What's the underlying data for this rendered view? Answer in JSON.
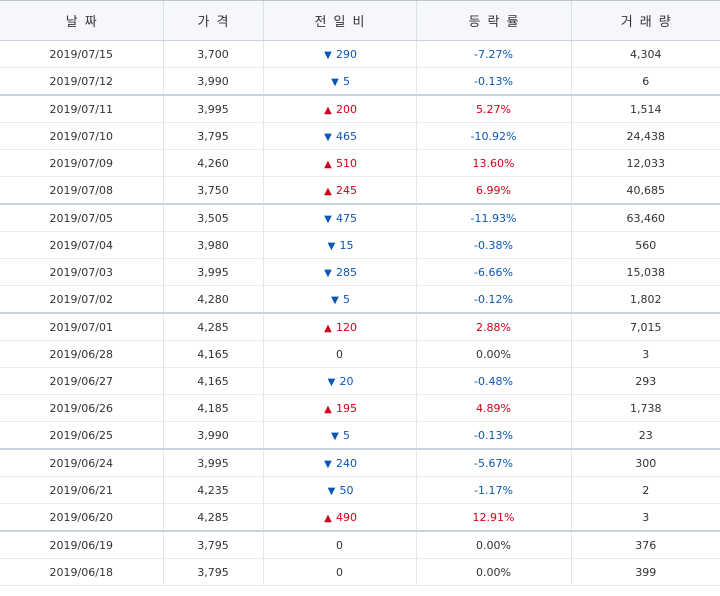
{
  "headers": [
    "날짜",
    "가격",
    "전일비",
    "등락률",
    "거래량"
  ],
  "colors": {
    "up": "#d0021b",
    "down": "#0a56b8",
    "flat": "#333333"
  },
  "rows": [
    {
      "date": "2019/07/15",
      "price": "3,700",
      "dir": "down",
      "change": "290",
      "rate": "-7.27%",
      "volume": "4,304"
    },
    {
      "date": "2019/07/12",
      "price": "3,990",
      "dir": "down",
      "change": "5",
      "rate": "-0.13%",
      "volume": "6"
    },
    {
      "date": "2019/07/11",
      "price": "3,995",
      "dir": "up",
      "change": "200",
      "rate": "5.27%",
      "volume": "1,514"
    },
    {
      "date": "2019/07/10",
      "price": "3,795",
      "dir": "down",
      "change": "465",
      "rate": "-10.92%",
      "volume": "24,438"
    },
    {
      "date": "2019/07/09",
      "price": "4,260",
      "dir": "up",
      "change": "510",
      "rate": "13.60%",
      "volume": "12,033"
    },
    {
      "date": "2019/07/08",
      "price": "3,750",
      "dir": "up",
      "change": "245",
      "rate": "6.99%",
      "volume": "40,685"
    },
    {
      "date": "2019/07/05",
      "price": "3,505",
      "dir": "down",
      "change": "475",
      "rate": "-11.93%",
      "volume": "63,460"
    },
    {
      "date": "2019/07/04",
      "price": "3,980",
      "dir": "down",
      "change": "15",
      "rate": "-0.38%",
      "volume": "560"
    },
    {
      "date": "2019/07/03",
      "price": "3,995",
      "dir": "down",
      "change": "285",
      "rate": "-6.66%",
      "volume": "15,038"
    },
    {
      "date": "2019/07/02",
      "price": "4,280",
      "dir": "down",
      "change": "5",
      "rate": "-0.12%",
      "volume": "1,802"
    },
    {
      "date": "2019/07/01",
      "price": "4,285",
      "dir": "up",
      "change": "120",
      "rate": "2.88%",
      "volume": "7,015"
    },
    {
      "date": "2019/06/28",
      "price": "4,165",
      "dir": "flat",
      "change": "0",
      "rate": "0.00%",
      "volume": "3"
    },
    {
      "date": "2019/06/27",
      "price": "4,165",
      "dir": "down",
      "change": "20",
      "rate": "-0.48%",
      "volume": "293"
    },
    {
      "date": "2019/06/26",
      "price": "4,185",
      "dir": "up",
      "change": "195",
      "rate": "4.89%",
      "volume": "1,738"
    },
    {
      "date": "2019/06/25",
      "price": "3,990",
      "dir": "down",
      "change": "5",
      "rate": "-0.13%",
      "volume": "23"
    },
    {
      "date": "2019/06/24",
      "price": "3,995",
      "dir": "down",
      "change": "240",
      "rate": "-5.67%",
      "volume": "300"
    },
    {
      "date": "2019/06/21",
      "price": "4,235",
      "dir": "down",
      "change": "50",
      "rate": "-1.17%",
      "volume": "2"
    },
    {
      "date": "2019/06/20",
      "price": "4,285",
      "dir": "up",
      "change": "490",
      "rate": "12.91%",
      "volume": "3"
    },
    {
      "date": "2019/06/19",
      "price": "3,795",
      "dir": "flat",
      "change": "0",
      "rate": "0.00%",
      "volume": "376"
    },
    {
      "date": "2019/06/18",
      "price": "3,795",
      "dir": "flat",
      "change": "0",
      "rate": "0.00%",
      "volume": "399"
    }
  ]
}
